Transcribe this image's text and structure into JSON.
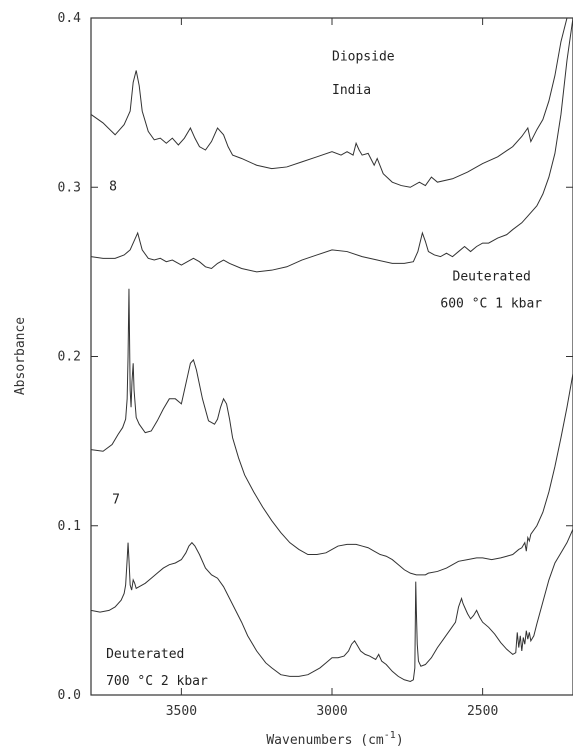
{
  "chart_data": {
    "type": "line",
    "xlabel": "Wavenumbers (cm",
    "xlabel_sup": "-1",
    "xlabel_close": ")",
    "ylabel": "Absorbance",
    "xlim": [
      3800,
      2200
    ],
    "ylim": [
      0.0,
      0.4
    ],
    "x_reversed": true,
    "x_ticks": [
      {
        "value": 3500,
        "label": "3500"
      },
      {
        "value": 3000,
        "label": "3000"
      },
      {
        "value": 2500,
        "label": "2500"
      }
    ],
    "y_ticks": [
      {
        "value": 0.0,
        "label": "0.0"
      },
      {
        "value": 0.1,
        "label": "0.1"
      },
      {
        "value": 0.2,
        "label": "0.2"
      },
      {
        "value": 0.3,
        "label": "0.3"
      },
      {
        "value": 0.4,
        "label": "0.4"
      }
    ],
    "grid": false,
    "annotations": [
      {
        "text": "Diopside",
        "x": 3000,
        "y": 0.375
      },
      {
        "text": "India",
        "x": 3000,
        "y": 0.355
      },
      {
        "text": "8",
        "x": 3740,
        "y": 0.298
      },
      {
        "text": "Deuterated",
        "x": 2600,
        "y": 0.245
      },
      {
        "text": "600 °C  1 kbar",
        "x": 2640,
        "y": 0.229
      },
      {
        "text": "7",
        "x": 3730,
        "y": 0.113
      },
      {
        "text": "Deuterated",
        "x": 3750,
        "y": 0.022
      },
      {
        "text": "700 °C  2 kbar",
        "x": 3750,
        "y": 0.006
      }
    ],
    "series": [
      {
        "x": [
          3800,
          3760,
          3720,
          3690,
          3670,
          3660,
          3650,
          3640,
          3630,
          3610,
          3590,
          3570,
          3550,
          3530,
          3510,
          3490,
          3470,
          3455,
          3440,
          3420,
          3400,
          3380,
          3360,
          3345,
          3330,
          3300,
          3250,
          3200,
          3150,
          3100,
          3050,
          3000,
          2970,
          2950,
          2930,
          2920,
          2910,
          2900,
          2880,
          2860,
          2850,
          2830,
          2800,
          2770,
          2740,
          2710,
          2690,
          2670,
          2650,
          2600,
          2550,
          2500,
          2450,
          2400,
          2370,
          2350,
          2340,
          2320,
          2300,
          2280,
          2260,
          2240,
          2220,
          2200
        ],
        "values": [
          0.343,
          0.338,
          0.331,
          0.337,
          0.345,
          0.362,
          0.369,
          0.36,
          0.345,
          0.333,
          0.328,
          0.329,
          0.326,
          0.329,
          0.325,
          0.329,
          0.335,
          0.329,
          0.324,
          0.322,
          0.327,
          0.335,
          0.331,
          0.324,
          0.319,
          0.317,
          0.313,
          0.311,
          0.312,
          0.315,
          0.318,
          0.321,
          0.319,
          0.321,
          0.319,
          0.326,
          0.322,
          0.319,
          0.32,
          0.313,
          0.317,
          0.308,
          0.303,
          0.301,
          0.3,
          0.303,
          0.301,
          0.306,
          0.303,
          0.305,
          0.309,
          0.314,
          0.318,
          0.324,
          0.33,
          0.335,
          0.327,
          0.334,
          0.34,
          0.351,
          0.366,
          0.386,
          0.4,
          0.4
        ]
      },
      {
        "x": [
          3800,
          3760,
          3720,
          3690,
          3670,
          3655,
          3645,
          3630,
          3610,
          3590,
          3570,
          3550,
          3530,
          3500,
          3480,
          3460,
          3440,
          3420,
          3400,
          3380,
          3360,
          3340,
          3300,
          3250,
          3200,
          3150,
          3100,
          3050,
          3000,
          2950,
          2900,
          2850,
          2800,
          2760,
          2730,
          2715,
          2700,
          2690,
          2680,
          2660,
          2640,
          2620,
          2600,
          2580,
          2560,
          2540,
          2520,
          2500,
          2480,
          2450,
          2420,
          2400,
          2370,
          2350,
          2320,
          2300,
          2280,
          2260,
          2240,
          2220,
          2200
        ],
        "values": [
          0.259,
          0.258,
          0.258,
          0.26,
          0.263,
          0.269,
          0.273,
          0.263,
          0.258,
          0.257,
          0.258,
          0.256,
          0.257,
          0.254,
          0.256,
          0.258,
          0.256,
          0.253,
          0.252,
          0.255,
          0.257,
          0.255,
          0.252,
          0.25,
          0.251,
          0.253,
          0.257,
          0.26,
          0.263,
          0.262,
          0.259,
          0.257,
          0.255,
          0.255,
          0.256,
          0.262,
          0.273,
          0.268,
          0.262,
          0.26,
          0.259,
          0.261,
          0.259,
          0.262,
          0.265,
          0.262,
          0.265,
          0.267,
          0.267,
          0.27,
          0.272,
          0.275,
          0.279,
          0.283,
          0.289,
          0.296,
          0.306,
          0.32,
          0.343,
          0.375,
          0.408
        ]
      },
      {
        "x": [
          3800,
          3760,
          3730,
          3710,
          3695,
          3685,
          3680,
          3677,
          3674,
          3670,
          3667,
          3664,
          3660,
          3657,
          3650,
          3640,
          3620,
          3600,
          3580,
          3560,
          3540,
          3520,
          3500,
          3480,
          3470,
          3460,
          3450,
          3430,
          3410,
          3390,
          3380,
          3370,
          3360,
          3350,
          3340,
          3330,
          3310,
          3290,
          3260,
          3230,
          3200,
          3170,
          3140,
          3110,
          3080,
          3050,
          3020,
          3000,
          2980,
          2950,
          2920,
          2900,
          2880,
          2860,
          2840,
          2820,
          2800,
          2780,
          2760,
          2740,
          2720,
          2700,
          2690,
          2680,
          2650,
          2620,
          2600,
          2580,
          2550,
          2520,
          2500,
          2470,
          2440,
          2420,
          2400,
          2380,
          2370,
          2360,
          2355,
          2350,
          2345,
          2340,
          2320,
          2300,
          2280,
          2260,
          2240,
          2220,
          2200
        ],
        "values": [
          0.145,
          0.144,
          0.148,
          0.154,
          0.158,
          0.163,
          0.175,
          0.2,
          0.24,
          0.18,
          0.17,
          0.185,
          0.196,
          0.18,
          0.164,
          0.16,
          0.155,
          0.156,
          0.162,
          0.169,
          0.175,
          0.175,
          0.172,
          0.188,
          0.196,
          0.198,
          0.192,
          0.175,
          0.162,
          0.16,
          0.163,
          0.17,
          0.175,
          0.172,
          0.163,
          0.152,
          0.14,
          0.13,
          0.12,
          0.111,
          0.103,
          0.096,
          0.09,
          0.086,
          0.083,
          0.083,
          0.084,
          0.086,
          0.088,
          0.089,
          0.089,
          0.088,
          0.087,
          0.085,
          0.083,
          0.082,
          0.08,
          0.077,
          0.074,
          0.072,
          0.071,
          0.071,
          0.071,
          0.072,
          0.073,
          0.075,
          0.077,
          0.079,
          0.08,
          0.081,
          0.081,
          0.08,
          0.081,
          0.082,
          0.083,
          0.086,
          0.087,
          0.09,
          0.085,
          0.093,
          0.091,
          0.095,
          0.1,
          0.108,
          0.12,
          0.135,
          0.152,
          0.17,
          0.19
        ]
      },
      {
        "x": [
          3800,
          3770,
          3740,
          3720,
          3700,
          3690,
          3685,
          3680,
          3677,
          3674,
          3670,
          3665,
          3660,
          3655,
          3650,
          3640,
          3620,
          3600,
          3580,
          3560,
          3540,
          3520,
          3500,
          3485,
          3475,
          3465,
          3455,
          3440,
          3420,
          3400,
          3380,
          3360,
          3340,
          3320,
          3300,
          3280,
          3250,
          3220,
          3200,
          3170,
          3140,
          3110,
          3080,
          3060,
          3040,
          3020,
          3000,
          2980,
          2960,
          2945,
          2935,
          2925,
          2915,
          2905,
          2890,
          2875,
          2865,
          2855,
          2845,
          2835,
          2820,
          2800,
          2780,
          2760,
          2740,
          2730,
          2725,
          2722,
          2720,
          2717,
          2713,
          2705,
          2690,
          2670,
          2650,
          2630,
          2610,
          2590,
          2580,
          2570,
          2565,
          2560,
          2550,
          2540,
          2530,
          2520,
          2510,
          2500,
          2480,
          2460,
          2440,
          2420,
          2400,
          2390,
          2385,
          2380,
          2375,
          2370,
          2365,
          2360,
          2355,
          2350,
          2345,
          2340,
          2330,
          2320,
          2300,
          2280,
          2260,
          2240,
          2220,
          2200
        ],
        "values": [
          0.05,
          0.049,
          0.05,
          0.052,
          0.056,
          0.06,
          0.065,
          0.08,
          0.09,
          0.08,
          0.065,
          0.062,
          0.068,
          0.066,
          0.063,
          0.064,
          0.066,
          0.069,
          0.072,
          0.075,
          0.077,
          0.078,
          0.08,
          0.084,
          0.088,
          0.09,
          0.088,
          0.083,
          0.075,
          0.071,
          0.069,
          0.064,
          0.057,
          0.05,
          0.043,
          0.035,
          0.026,
          0.019,
          0.016,
          0.012,
          0.011,
          0.011,
          0.012,
          0.014,
          0.016,
          0.019,
          0.022,
          0.022,
          0.023,
          0.026,
          0.03,
          0.032,
          0.029,
          0.026,
          0.024,
          0.023,
          0.022,
          0.021,
          0.024,
          0.02,
          0.018,
          0.014,
          0.011,
          0.009,
          0.008,
          0.009,
          0.016,
          0.067,
          0.05,
          0.03,
          0.02,
          0.017,
          0.018,
          0.022,
          0.028,
          0.033,
          0.038,
          0.043,
          0.052,
          0.057,
          0.054,
          0.052,
          0.048,
          0.045,
          0.047,
          0.05,
          0.046,
          0.043,
          0.04,
          0.036,
          0.031,
          0.027,
          0.024,
          0.025,
          0.037,
          0.028,
          0.035,
          0.026,
          0.034,
          0.03,
          0.038,
          0.033,
          0.037,
          0.032,
          0.035,
          0.042,
          0.055,
          0.068,
          0.078,
          0.084,
          0.09,
          0.098
        ]
      }
    ]
  }
}
